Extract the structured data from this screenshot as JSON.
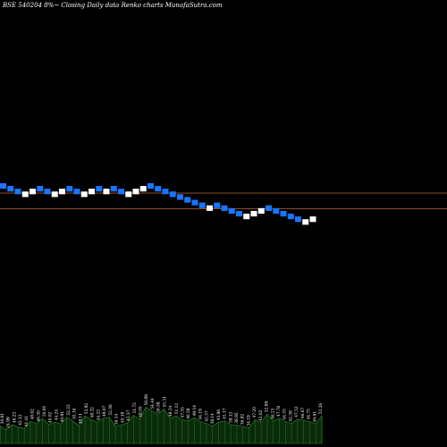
{
  "header": {
    "title": "BSE 540204  8%~ Closing Daily data  Renko  charts MunafaSutra.com"
  },
  "colors": {
    "background": "#000000",
    "brick_up": "#ffffff",
    "brick_down": "#1a75ff",
    "reference_line": "#c0673a",
    "volume_fill": "#0a2a0a",
    "volume_stroke": "#2f8f2f"
  },
  "chart_data": {
    "type": "renko",
    "title": "BSE 540204  8%~ Closing Daily data  Renko  charts MunafaSutra.com",
    "brick_direction": [
      "down",
      "down",
      "down",
      "up",
      "up",
      "down",
      "down",
      "up",
      "up",
      "down",
      "down",
      "up",
      "up",
      "down",
      "up",
      "down",
      "down",
      "up",
      "up",
      "up",
      "down",
      "down",
      "down",
      "down",
      "down",
      "down",
      "down",
      "down",
      "up",
      "down",
      "down",
      "down",
      "down",
      "up",
      "up",
      "up",
      "down",
      "down",
      "down",
      "down",
      "down",
      "up",
      "up"
    ],
    "brick_level_steps": [
      0,
      -1,
      -2,
      -3,
      -2,
      -1,
      -2,
      -3,
      -2,
      -1,
      -2,
      -3,
      -2,
      -1,
      -2,
      -1,
      -2,
      -3,
      -2,
      -1,
      0,
      -1,
      -2,
      -3,
      -4,
      -5,
      -6,
      -7,
      -8,
      -7,
      -8,
      -9,
      -10,
      -11,
      -10,
      -9,
      -8,
      -9,
      -10,
      -11,
      -12,
      -13,
      -12
    ],
    "reference_lines": [
      "upper",
      "lower"
    ],
    "volume_labels": [
      "34.91",
      "24.99",
      "46.23",
      "42.12",
      "41.41",
      "48.62",
      "46.30",
      "50.91",
      "40.02",
      "44.24",
      "40.91",
      "52.22",
      "45.16",
      "38.11",
      "53.92",
      "48.32",
      "44.22",
      "49.07",
      "52.06",
      "36.14",
      "40.18",
      "42.37",
      "51.72",
      "48.05",
      "56.89",
      "54.44",
      "50.58",
      "55.31",
      "48.24",
      "51.12",
      "47.55",
      "46.58",
      "49.14",
      "44.19",
      "42.57",
      "38.14",
      "43.96",
      "45.17",
      "39.12",
      "38.95",
      "36.82",
      "34.19",
      "47.20",
      "42.62",
      "52.89",
      "46.21",
      "47.76",
      "44.53",
      "42.39",
      "47.52",
      "46.67",
      "44.73",
      "40.91",
      "52.26"
    ],
    "volume_bars": [
      0.28,
      0.22,
      0.3,
      0.26,
      0.24,
      0.35,
      0.32,
      0.4,
      0.3,
      0.34,
      0.31,
      0.42,
      0.36,
      0.28,
      0.44,
      0.38,
      0.34,
      0.4,
      0.42,
      0.27,
      0.3,
      0.33,
      0.45,
      0.39,
      0.58,
      0.52,
      0.46,
      0.55,
      0.4,
      0.44,
      0.38,
      0.36,
      0.41,
      0.35,
      0.32,
      0.28,
      0.34,
      0.36,
      0.3,
      0.29,
      0.27,
      0.25,
      0.38,
      0.33,
      0.47,
      0.36,
      0.4,
      0.35,
      0.32,
      0.39,
      0.37,
      0.35,
      0.31,
      0.44
    ]
  }
}
